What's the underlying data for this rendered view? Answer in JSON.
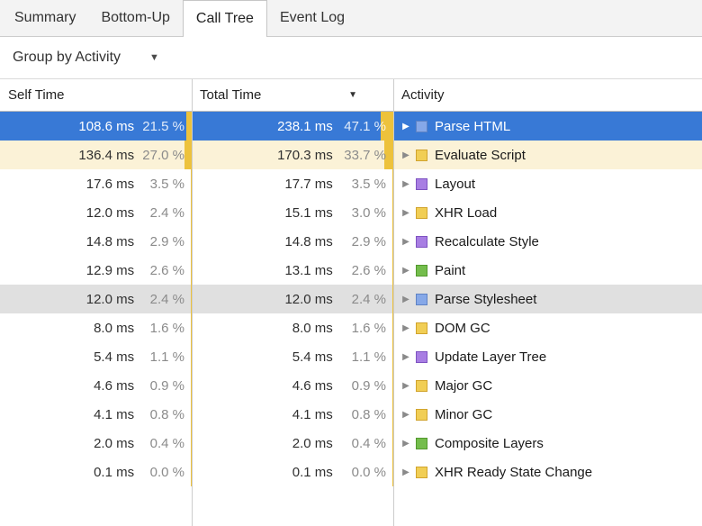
{
  "tabs": [
    {
      "label": "Summary",
      "selected": false
    },
    {
      "label": "Bottom-Up",
      "selected": false
    },
    {
      "label": "Call Tree",
      "selected": true
    },
    {
      "label": "Event Log",
      "selected": false
    }
  ],
  "toolbar": {
    "group_by_value": "Group by Activity"
  },
  "icons": {
    "dropdown": "▼",
    "sort_desc": "▼",
    "disclosure_collapsed": "▶"
  },
  "table": {
    "columns": [
      "Self Time",
      "Total Time",
      "Activity"
    ],
    "sort": {
      "column": "Total Time",
      "direction": "descending"
    },
    "rows": [
      {
        "self_ms": "108.6 ms",
        "self_pct": "21.5 %",
        "self_pct_value": 21.5,
        "total_ms": "238.1 ms",
        "total_pct": "47.1 %",
        "total_pct_value": 47.1,
        "activity": "Parse HTML",
        "category": "loading",
        "state": "selected"
      },
      {
        "self_ms": "136.4 ms",
        "self_pct": "27.0 %",
        "self_pct_value": 27.0,
        "total_ms": "170.3 ms",
        "total_pct": "33.7 %",
        "total_pct_value": 33.7,
        "activity": "Evaluate Script",
        "category": "scripting",
        "state": "highlighted"
      },
      {
        "self_ms": "17.6 ms",
        "self_pct": "3.5 %",
        "self_pct_value": 3.5,
        "total_ms": "17.7 ms",
        "total_pct": "3.5 %",
        "total_pct_value": 3.5,
        "activity": "Layout",
        "category": "rendering",
        "state": "normal"
      },
      {
        "self_ms": "12.0 ms",
        "self_pct": "2.4 %",
        "self_pct_value": 2.4,
        "total_ms": "15.1 ms",
        "total_pct": "3.0 %",
        "total_pct_value": 3.0,
        "activity": "XHR Load",
        "category": "scripting",
        "state": "normal"
      },
      {
        "self_ms": "14.8 ms",
        "self_pct": "2.9 %",
        "self_pct_value": 2.9,
        "total_ms": "14.8 ms",
        "total_pct": "2.9 %",
        "total_pct_value": 2.9,
        "activity": "Recalculate Style",
        "category": "rendering",
        "state": "normal"
      },
      {
        "self_ms": "12.9 ms",
        "self_pct": "2.6 %",
        "self_pct_value": 2.6,
        "total_ms": "13.1 ms",
        "total_pct": "2.6 %",
        "total_pct_value": 2.6,
        "activity": "Paint",
        "category": "painting",
        "state": "normal"
      },
      {
        "self_ms": "12.0 ms",
        "self_pct": "2.4 %",
        "self_pct_value": 2.4,
        "total_ms": "12.0 ms",
        "total_pct": "2.4 %",
        "total_pct_value": 2.4,
        "activity": "Parse Stylesheet",
        "category": "loading",
        "state": "inactive-selected"
      },
      {
        "self_ms": "8.0 ms",
        "self_pct": "1.6 %",
        "self_pct_value": 1.6,
        "total_ms": "8.0 ms",
        "total_pct": "1.6 %",
        "total_pct_value": 1.6,
        "activity": "DOM GC",
        "category": "scripting",
        "state": "normal"
      },
      {
        "self_ms": "5.4 ms",
        "self_pct": "1.1 %",
        "self_pct_value": 1.1,
        "total_ms": "5.4 ms",
        "total_pct": "1.1 %",
        "total_pct_value": 1.1,
        "activity": "Update Layer Tree",
        "category": "rendering",
        "state": "normal"
      },
      {
        "self_ms": "4.6 ms",
        "self_pct": "0.9 %",
        "self_pct_value": 0.9,
        "total_ms": "4.6 ms",
        "total_pct": "0.9 %",
        "total_pct_value": 0.9,
        "activity": "Major GC",
        "category": "scripting",
        "state": "normal"
      },
      {
        "self_ms": "4.1 ms",
        "self_pct": "0.8 %",
        "self_pct_value": 0.8,
        "total_ms": "4.1 ms",
        "total_pct": "0.8 %",
        "total_pct_value": 0.8,
        "activity": "Minor GC",
        "category": "scripting",
        "state": "normal"
      },
      {
        "self_ms": "2.0 ms",
        "self_pct": "0.4 %",
        "self_pct_value": 0.4,
        "total_ms": "2.0 ms",
        "total_pct": "0.4 %",
        "total_pct_value": 0.4,
        "activity": "Composite Layers",
        "category": "painting",
        "state": "normal"
      },
      {
        "self_ms": "0.1 ms",
        "self_pct": "0.0 %",
        "self_pct_value": 0.0,
        "total_ms": "0.1 ms",
        "total_pct": "0.0 %",
        "total_pct_value": 0.0,
        "activity": "XHR Ready State Change",
        "category": "scripting",
        "state": "normal"
      }
    ]
  },
  "categories": {
    "loading": {
      "fill": "#86a8e8",
      "border": "#5f83c4"
    },
    "scripting": {
      "fill": "#f1ce55",
      "border": "#d1a42e"
    },
    "rendering": {
      "fill": "#a87ee3",
      "border": "#7e53c1"
    },
    "painting": {
      "fill": "#74bd4c",
      "border": "#53992e"
    }
  },
  "colors": {
    "selection": "#3879d6",
    "highlight": "#fbf2d7",
    "inactive_selection": "#e0e0e0",
    "percent_bar": "#edc23c"
  }
}
